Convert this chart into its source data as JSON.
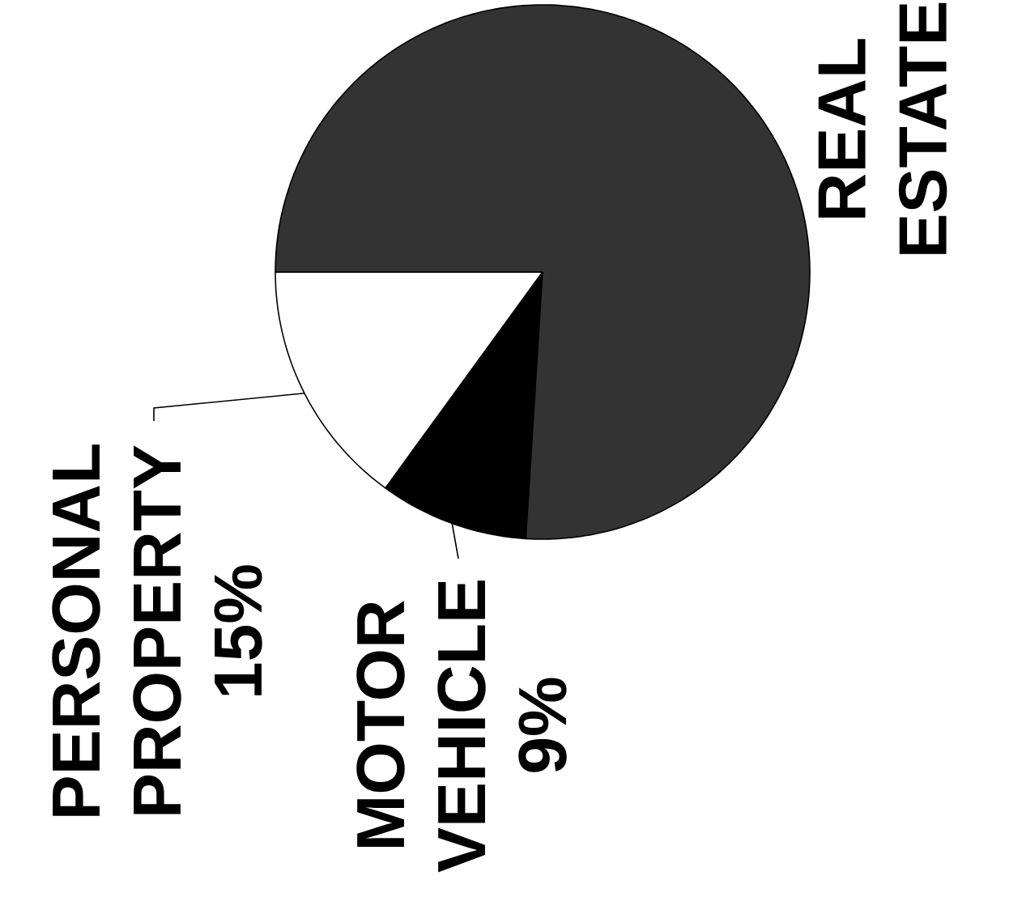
{
  "chart_data": {
    "type": "pie",
    "categories": [
      "PERSONAL PROPERTY",
      "MOTOR VEHICLE",
      "REAL ESTATE"
    ],
    "values": [
      15,
      9,
      76
    ],
    "colors": [
      "#ffffff",
      "#000000",
      "#333333"
    ],
    "value_labels": [
      "15%",
      "9%",
      null
    ]
  }
}
